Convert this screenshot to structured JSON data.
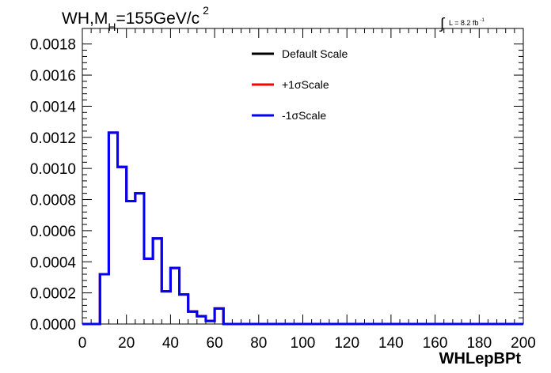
{
  "chart_data": {
    "type": "line",
    "title_prefix": "WH,M",
    "title_sub": "H",
    "title_rest": "=155GeV/c",
    "title_sup": "2",
    "lumi": {
      "integral_glyph": "∫",
      "text": "L = 8.2 fb",
      "sup": "-1"
    },
    "xlabel": "WHLepBPt",
    "ylabel": "",
    "xlim": [
      0,
      200
    ],
    "ylim": [
      0,
      0.0019
    ],
    "x_ticks": [
      "0",
      "20",
      "40",
      "60",
      "80",
      "100",
      "120",
      "140",
      "160",
      "180",
      "200"
    ],
    "y_ticks": [
      "0.0000",
      "0.0002",
      "0.0004",
      "0.0006",
      "0.0008",
      "0.0010",
      "0.0012",
      "0.0014",
      "0.0016",
      "0.0018"
    ],
    "bin_edges": [
      0,
      4,
      8,
      12,
      16,
      20,
      24,
      28,
      32,
      36,
      40,
      44,
      48,
      52,
      56,
      60,
      64,
      68,
      72,
      76,
      80,
      84,
      88,
      92,
      96,
      100,
      104,
      108,
      112,
      116,
      120,
      124,
      128,
      132,
      136,
      140,
      144,
      148,
      152,
      156,
      160,
      164,
      168,
      172,
      176,
      180,
      184,
      188,
      192,
      196,
      200
    ],
    "series": [
      {
        "name": "Default Scale",
        "color": "#000000",
        "values": [
          0,
          0,
          0.00032,
          0.00123,
          0.00101,
          0.00079,
          0.00084,
          0.00042,
          0.00055,
          0.00021,
          0.00036,
          0.00019,
          8e-05,
          5e-05,
          2e-05,
          0.0001,
          0,
          0,
          0,
          0,
          0,
          0,
          0,
          0,
          0,
          0,
          0,
          0,
          0,
          0,
          0,
          0,
          0,
          0,
          0,
          0,
          0,
          0,
          0,
          0,
          0,
          0,
          0,
          0,
          0,
          0,
          0,
          0,
          0,
          0
        ]
      },
      {
        "name": "+1σScale",
        "color": "#ff0000",
        "values": [
          0,
          0,
          0.00032,
          0.00123,
          0.00101,
          0.00079,
          0.00084,
          0.00042,
          0.00055,
          0.00021,
          0.00036,
          0.00019,
          8e-05,
          5e-05,
          2e-05,
          0.0001,
          0,
          0,
          0,
          0,
          0,
          0,
          0,
          0,
          0,
          0,
          0,
          0,
          0,
          0,
          0,
          0,
          0,
          0,
          0,
          0,
          0,
          0,
          0,
          0,
          0,
          0,
          0,
          0,
          0,
          0,
          0,
          0,
          0,
          0
        ]
      },
      {
        "name": "-1σScale",
        "color": "#0000ff",
        "values": [
          0,
          0,
          0.00032,
          0.00123,
          0.00101,
          0.00079,
          0.00084,
          0.00042,
          0.00055,
          0.00021,
          0.00036,
          0.00019,
          8e-05,
          5e-05,
          2e-05,
          0.0001,
          0,
          0,
          0,
          0,
          0,
          0,
          0,
          0,
          0,
          0,
          0,
          0,
          0,
          0,
          0,
          0,
          0,
          0,
          0,
          0,
          0,
          0,
          0,
          0,
          0,
          0,
          0,
          0,
          0,
          0,
          0,
          0,
          0,
          0
        ]
      }
    ],
    "legend_position": "top-center",
    "grid": false
  }
}
